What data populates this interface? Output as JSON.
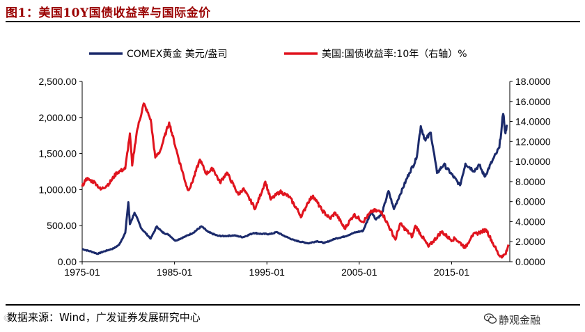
{
  "figure_title": "图1：美国10Y国债收益率与国际金价",
  "source_note": "数据来源：Wind，广发证券发展研究中心",
  "brand": "静观金融",
  "colors": {
    "gold": "#1b2a6b",
    "yield": "#e0141e",
    "title": "#9a0000"
  },
  "chart_data": {
    "type": "line",
    "legend_placement": "top",
    "grid": false,
    "x_ticks": [
      "1975-01",
      "1985-01",
      "1995-01",
      "2005-01",
      "2015-01"
    ],
    "y_left": {
      "ticks": [
        "0.00",
        "500.00",
        "1,000.00",
        "1,500.00",
        "2,000.00",
        "2,500.00"
      ],
      "range": [
        0,
        2500
      ]
    },
    "y_right": {
      "ticks": [
        "0.0000",
        "2.0000",
        "4.0000",
        "6.0000",
        "8.0000",
        "10.0000",
        "12.0000",
        "14.0000",
        "16.0000",
        "18.0000"
      ],
      "range": [
        0,
        18
      ]
    },
    "series": [
      {
        "name": "COMEX黄金 美元/盎司",
        "axis": "left",
        "points": [
          [
            "1975-01",
            175
          ],
          [
            "1976-01",
            140
          ],
          [
            "1976-09",
            110
          ],
          [
            "1977-06",
            145
          ],
          [
            "1978-06",
            185
          ],
          [
            "1979-01",
            235
          ],
          [
            "1979-09",
            400
          ],
          [
            "1980-01",
            825
          ],
          [
            "1980-03",
            520
          ],
          [
            "1980-09",
            680
          ],
          [
            "1981-06",
            460
          ],
          [
            "1982-06",
            320
          ],
          [
            "1983-02",
            490
          ],
          [
            "1983-09",
            410
          ],
          [
            "1984-06",
            370
          ],
          [
            "1985-02",
            290
          ],
          [
            "1986-01",
            340
          ],
          [
            "1987-01",
            400
          ],
          [
            "1987-12",
            490
          ],
          [
            "1988-09",
            410
          ],
          [
            "1989-09",
            360
          ],
          [
            "1990-06",
            355
          ],
          [
            "1991-06",
            365
          ],
          [
            "1992-06",
            340
          ],
          [
            "1993-08",
            400
          ],
          [
            "1994-06",
            385
          ],
          [
            "1995-06",
            385
          ],
          [
            "1996-02",
            410
          ],
          [
            "1997-01",
            350
          ],
          [
            "1998-01",
            295
          ],
          [
            "1999-07",
            255
          ],
          [
            "2000-06",
            285
          ],
          [
            "2001-04",
            260
          ],
          [
            "2002-06",
            320
          ],
          [
            "2003-06",
            350
          ],
          [
            "2004-06",
            400
          ],
          [
            "2005-06",
            430
          ],
          [
            "2006-05",
            700
          ],
          [
            "2006-10",
            590
          ],
          [
            "2007-06",
            650
          ],
          [
            "2008-03",
            980
          ],
          [
            "2008-10",
            730
          ],
          [
            "2009-06",
            930
          ],
          [
            "2010-06",
            1230
          ],
          [
            "2011-03",
            1420
          ],
          [
            "2011-09",
            1880
          ],
          [
            "2012-03",
            1680
          ],
          [
            "2012-10",
            1790
          ],
          [
            "2013-06",
            1230
          ],
          [
            "2014-03",
            1350
          ],
          [
            "2015-12",
            1060
          ],
          [
            "2016-07",
            1360
          ],
          [
            "2017-06",
            1260
          ],
          [
            "2018-01",
            1340
          ],
          [
            "2018-08",
            1180
          ],
          [
            "2019-06",
            1400
          ],
          [
            "2019-12",
            1520
          ],
          [
            "2020-03",
            1580
          ],
          [
            "2020-08",
            2050
          ],
          [
            "2020-11",
            1780
          ],
          [
            "2021-01",
            1900
          ]
        ]
      },
      {
        "name": "美国:国债收益率:10年（右轴）%",
        "axis": "right",
        "points": [
          [
            "1975-01",
            7.5
          ],
          [
            "1975-06",
            8.3
          ],
          [
            "1976-06",
            7.9
          ],
          [
            "1977-01",
            7.2
          ],
          [
            "1977-12",
            7.8
          ],
          [
            "1978-10",
            8.9
          ],
          [
            "1979-09",
            9.3
          ],
          [
            "1980-03",
            12.8
          ],
          [
            "1980-06",
            9.6
          ],
          [
            "1980-12",
            13.0
          ],
          [
            "1981-09",
            15.8
          ],
          [
            "1982-06",
            14.2
          ],
          [
            "1982-12",
            10.4
          ],
          [
            "1983-06",
            11.0
          ],
          [
            "1984-06",
            13.9
          ],
          [
            "1985-06",
            10.4
          ],
          [
            "1986-06",
            7.2
          ],
          [
            "1986-10",
            7.5
          ],
          [
            "1987-10",
            10.2
          ],
          [
            "1988-06",
            8.8
          ],
          [
            "1989-03",
            9.3
          ],
          [
            "1989-12",
            7.9
          ],
          [
            "1990-09",
            8.9
          ],
          [
            "1991-12",
            6.7
          ],
          [
            "1992-06",
            7.3
          ],
          [
            "1993-10",
            5.3
          ],
          [
            "1994-11",
            8.0
          ],
          [
            "1995-06",
            6.2
          ],
          [
            "1996-06",
            7.0
          ],
          [
            "1997-06",
            6.5
          ],
          [
            "1998-10",
            4.5
          ],
          [
            "1999-06",
            5.9
          ],
          [
            "2000-01",
            6.6
          ],
          [
            "2000-12",
            5.2
          ],
          [
            "2001-11",
            4.3
          ],
          [
            "2002-06",
            4.9
          ],
          [
            "2003-06",
            3.3
          ],
          [
            "2004-06",
            4.7
          ],
          [
            "2005-06",
            4.0
          ],
          [
            "2006-06",
            5.1
          ],
          [
            "2007-06",
            5.0
          ],
          [
            "2008-12",
            2.2
          ],
          [
            "2009-06",
            3.8
          ],
          [
            "2010-10",
            2.5
          ],
          [
            "2011-02",
            3.6
          ],
          [
            "2012-07",
            1.5
          ],
          [
            "2013-12",
            3.0
          ],
          [
            "2014-12",
            2.2
          ],
          [
            "2015-06",
            2.3
          ],
          [
            "2016-07",
            1.4
          ],
          [
            "2017-03",
            2.6
          ],
          [
            "2018-10",
            3.2
          ],
          [
            "2019-09",
            1.5
          ],
          [
            "2020-03",
            0.6
          ],
          [
            "2020-08",
            0.55
          ],
          [
            "2021-01",
            1.1
          ],
          [
            "2021-03",
            1.7
          ]
        ]
      }
    ]
  }
}
